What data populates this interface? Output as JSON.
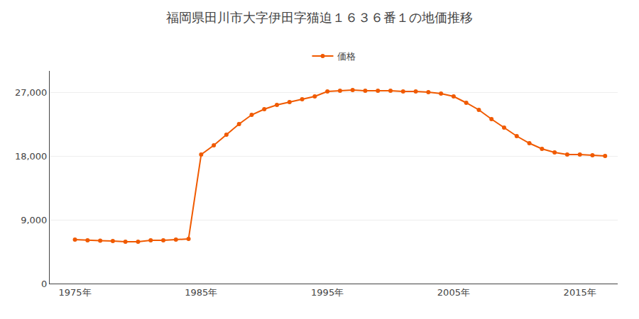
{
  "chart_data": {
    "type": "line",
    "title": "福岡県田川市大字伊田字猫迫１６３６番１の地価推移",
    "series": [
      {
        "name": "価格",
        "color": "#F05A00",
        "marker": "circle",
        "line_style": "solid",
        "values": [
          6200,
          6100,
          6050,
          6000,
          5900,
          5900,
          6100,
          6100,
          6200,
          6300,
          18200,
          19500,
          21000,
          22500,
          23800,
          24600,
          25200,
          25600,
          26000,
          26400,
          27100,
          27200,
          27300,
          27200,
          27200,
          27200,
          27100,
          27100,
          27000,
          26800,
          26400,
          25500,
          24500,
          23200,
          22000,
          20800,
          19800,
          19000,
          18500,
          18200,
          18200,
          18100,
          18000
        ]
      }
    ],
    "x": [
      1975,
      1976,
      1977,
      1978,
      1979,
      1980,
      1981,
      1982,
      1983,
      1984,
      1985,
      1986,
      1987,
      1988,
      1989,
      1990,
      1991,
      1992,
      1993,
      1994,
      1995,
      1996,
      1997,
      1998,
      1999,
      2000,
      2001,
      2002,
      2003,
      2004,
      2005,
      2006,
      2007,
      2008,
      2009,
      2010,
      2011,
      2012,
      2013,
      2014,
      2015,
      2016,
      2017
    ],
    "xlim": [
      1973,
      2018
    ],
    "xticks": [
      {
        "value": 1975,
        "label": "1975年"
      },
      {
        "value": 1985,
        "label": "1985年"
      },
      {
        "value": 1995,
        "label": "1995年"
      },
      {
        "value": 2005,
        "label": "2005年"
      },
      {
        "value": 2015,
        "label": "2015年"
      }
    ],
    "ylim": [
      0,
      30000
    ],
    "yticks": [
      0,
      {
        "value": 9000,
        "label": "9,000"
      },
      {
        "value": 18000,
        "label": "18,000"
      },
      {
        "value": 27000,
        "label": "27,000"
      }
    ],
    "grid": "y",
    "legend": "top"
  }
}
